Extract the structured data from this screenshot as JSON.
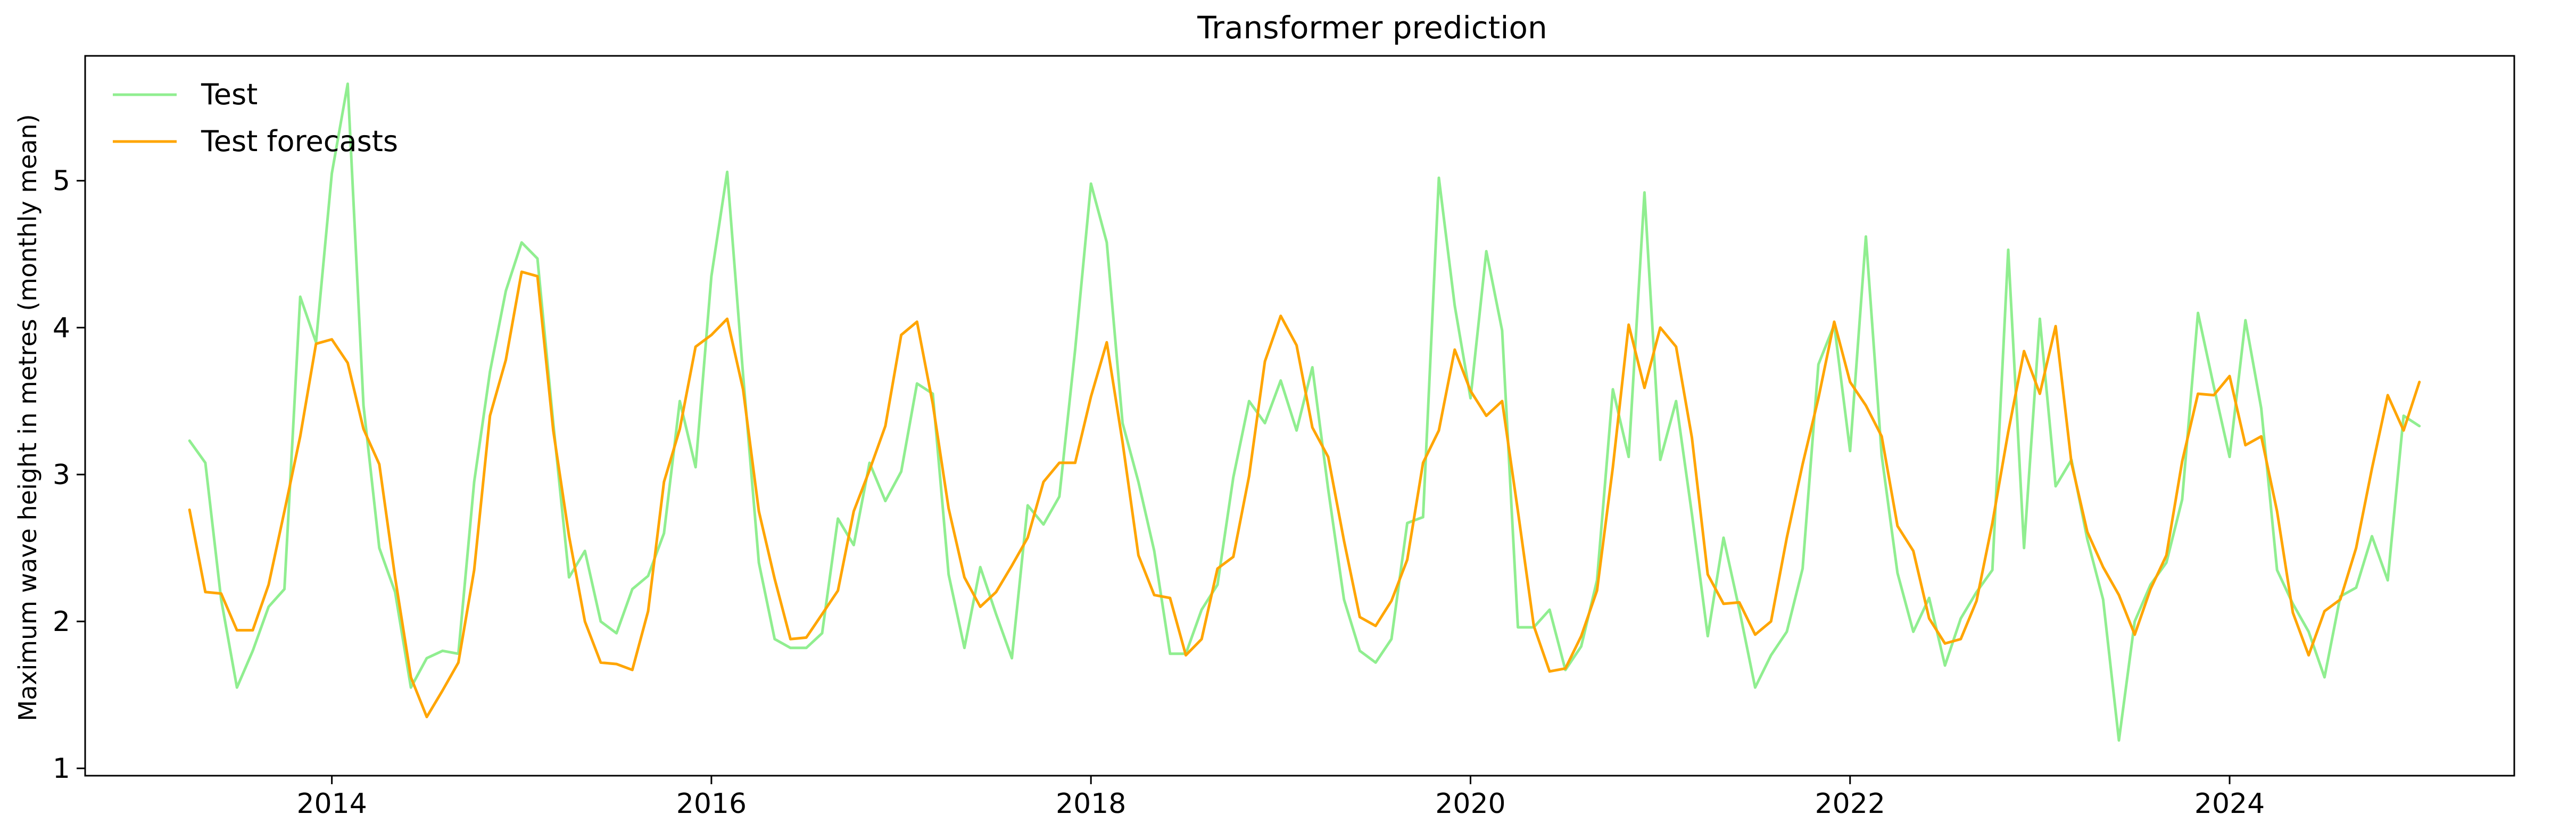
{
  "chart_data": {
    "type": "line",
    "title": "Transformer prediction",
    "xlabel": "",
    "ylabel": "Maximum wave height in metres (monthly mean)",
    "xlim": [
      2012.7,
      2025.5
    ],
    "ylim": [
      0.95,
      5.85
    ],
    "xticks": [
      2014,
      2016,
      2018,
      2020,
      2022,
      2024
    ],
    "xtick_labels": [
      "2014",
      "2016",
      "2018",
      "2020",
      "2022",
      "2024"
    ],
    "yticks": [
      1,
      2,
      3,
      4,
      5
    ],
    "ytick_labels": [
      "1",
      "2",
      "3",
      "4",
      "5"
    ],
    "grid": false,
    "legend_position": "top-left",
    "x_start": "2013-04",
    "x_step": "1 month",
    "series": [
      {
        "name": "Test",
        "color": "#90ee90",
        "values": [
          3.23,
          3.08,
          2.15,
          1.55,
          1.8,
          2.1,
          2.22,
          4.21,
          3.9,
          5.05,
          5.66,
          3.47,
          2.5,
          2.2,
          1.55,
          1.75,
          1.8,
          1.78,
          2.95,
          3.7,
          4.25,
          4.58,
          4.47,
          3.35,
          2.3,
          2.48,
          2.0,
          1.92,
          2.22,
          2.31,
          2.6,
          3.5,
          3.05,
          4.35,
          5.06,
          3.68,
          2.4,
          1.88,
          1.82,
          1.82,
          1.92,
          2.7,
          2.52,
          3.08,
          2.82,
          3.02,
          3.62,
          3.55,
          2.32,
          1.82,
          2.37,
          2.05,
          1.75,
          2.79,
          2.66,
          2.85,
          3.85,
          4.98,
          4.58,
          3.35,
          2.95,
          2.48,
          1.78,
          1.78,
          2.08,
          2.25,
          2.98,
          3.5,
          3.35,
          3.64,
          3.3,
          3.73,
          2.9,
          2.15,
          1.8,
          1.72,
          1.88,
          2.67,
          2.71,
          5.02,
          4.15,
          3.52,
          4.52,
          3.98,
          1.96,
          1.96,
          2.08,
          1.67,
          1.83,
          2.28,
          3.58,
          3.12,
          4.92,
          3.1,
          3.5,
          2.73,
          1.9,
          2.57,
          2.08,
          1.55,
          1.77,
          1.93,
          2.36,
          3.75,
          4.02,
          3.16,
          4.62,
          3.13,
          2.33,
          1.93,
          2.16,
          1.7,
          2.02,
          2.2,
          2.35,
          4.53,
          2.5,
          4.06,
          2.92,
          3.1,
          2.56,
          2.15,
          1.19,
          2.0,
          2.25,
          2.4,
          2.83,
          4.1,
          3.6,
          3.12,
          4.05,
          3.45,
          2.35,
          2.12,
          1.93,
          1.62,
          2.17,
          2.23,
          2.58,
          2.28,
          3.4,
          3.33
        ]
      },
      {
        "name": "Test forecasts",
        "color": "#ffa500",
        "values": [
          2.76,
          2.2,
          2.19,
          1.94,
          1.94,
          2.25,
          2.75,
          3.26,
          3.89,
          3.92,
          3.76,
          3.31,
          3.07,
          2.3,
          1.62,
          1.35,
          1.53,
          1.72,
          2.35,
          3.4,
          3.78,
          4.38,
          4.35,
          3.3,
          2.58,
          2.0,
          1.72,
          1.71,
          1.67,
          2.07,
          2.95,
          3.31,
          3.87,
          3.95,
          4.06,
          3.58,
          2.75,
          2.29,
          1.88,
          1.89,
          2.05,
          2.21,
          2.75,
          3.03,
          3.33,
          3.95,
          4.04,
          3.48,
          2.77,
          2.3,
          2.1,
          2.2,
          2.38,
          2.57,
          2.95,
          3.08,
          3.08,
          3.53,
          3.9,
          3.22,
          2.45,
          2.18,
          2.16,
          1.77,
          1.88,
          2.36,
          2.44,
          2.99,
          3.77,
          4.08,
          3.88,
          3.32,
          3.12,
          2.55,
          2.03,
          1.97,
          2.14,
          2.42,
          3.08,
          3.3,
          3.85,
          3.57,
          3.4,
          3.5,
          2.75,
          1.97,
          1.66,
          1.68,
          1.9,
          2.21,
          3.05,
          4.02,
          3.59,
          4.0,
          3.87,
          3.25,
          2.32,
          2.12,
          2.13,
          1.91,
          2.0,
          2.57,
          3.07,
          3.52,
          4.04,
          3.63,
          3.47,
          3.26,
          2.65,
          2.48,
          2.02,
          1.85,
          1.88,
          2.14,
          2.67,
          3.29,
          3.84,
          3.55,
          4.01,
          3.08,
          2.61,
          2.37,
          2.18,
          1.91,
          2.22,
          2.45,
          3.09,
          3.55,
          3.54,
          3.67,
          3.2,
          3.26,
          2.75,
          2.06,
          1.77,
          2.07,
          2.15,
          2.5,
          3.04,
          3.54,
          3.3,
          3.63
        ]
      }
    ]
  }
}
